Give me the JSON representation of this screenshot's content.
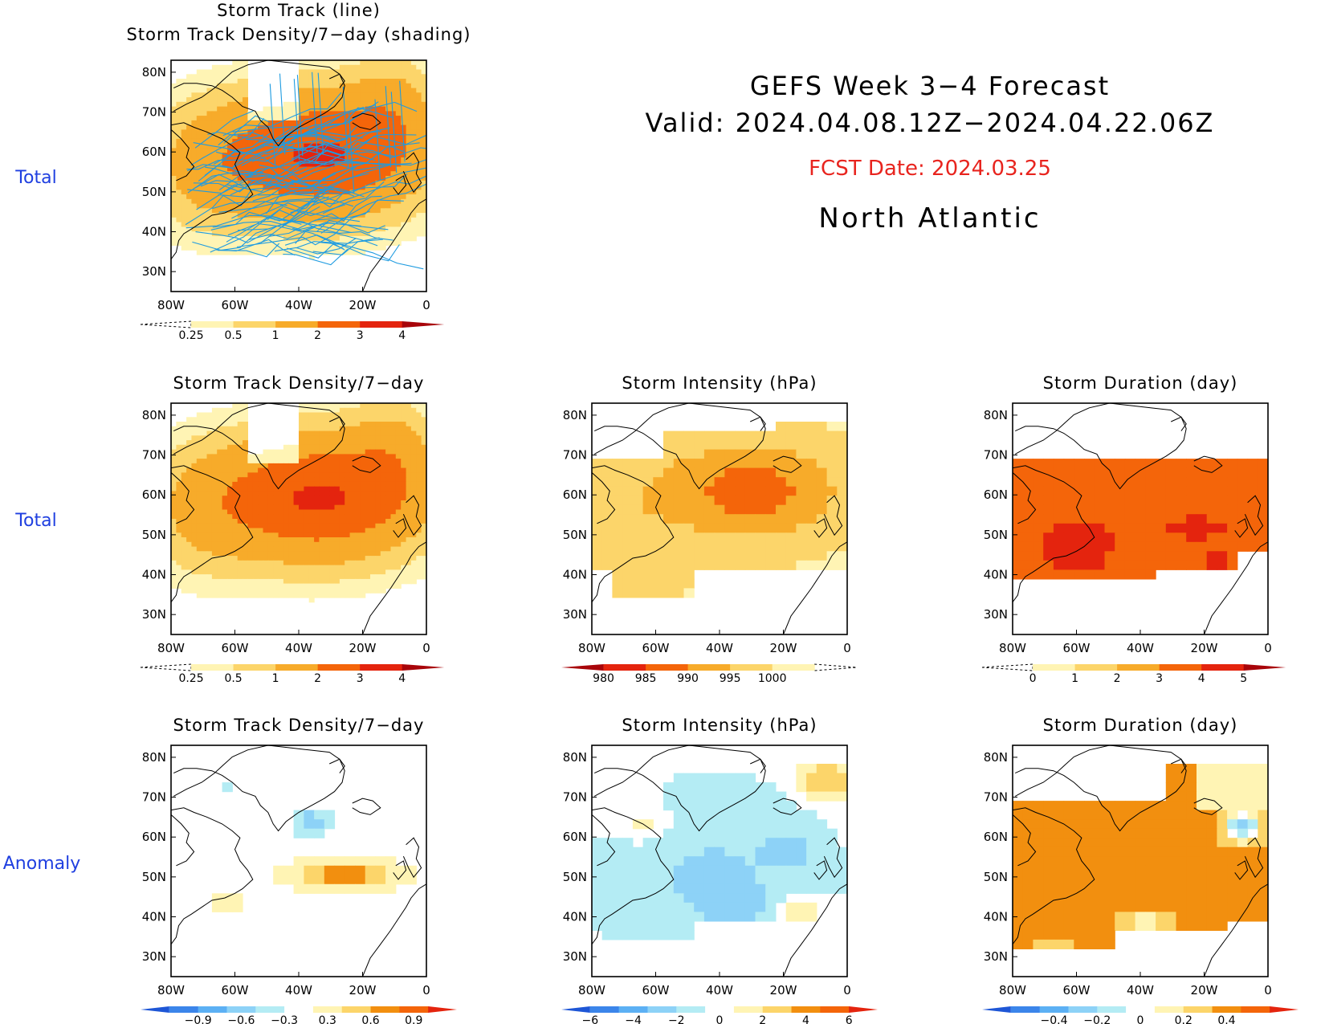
{
  "header": {
    "title_line1": "GEFS Week 3−4 Forecast",
    "title_line2": "Valid: 2024.04.08.12Z−2024.04.22.06Z",
    "fcst_date": "FCST Date: 2024.03.25",
    "region": "North Atlantic"
  },
  "row_labels": {
    "row1": "Total",
    "row2": "Total",
    "row3": "Anomaly"
  },
  "colors": {
    "row_label": "#1f3fe0",
    "fcst_date": "#e8241e",
    "track_line": "#1e9be0",
    "positive": [
      "#fff4b4",
      "#fcd56a",
      "#f7ab2a",
      "#f28f0f",
      "#f4650a",
      "#e4240e",
      "#a8050a"
    ],
    "negative": [
      "#b4ecf4",
      "#8dd2f7",
      "#5cb0f4",
      "#3b85ea",
      "#1e56d6"
    ]
  },
  "chart_data": [
    {
      "id": "track",
      "type": "heatmap",
      "title": [
        "Storm Track (line)",
        "Storm Track Density/7−day (shading)"
      ],
      "xlabel": "",
      "ylabel": "",
      "x_ticks": [
        "80W",
        "60W",
        "40W",
        "20W",
        "0"
      ],
      "y_ticks": [
        "80N",
        "70N",
        "60N",
        "50N",
        "40N",
        "30N"
      ],
      "lon_range": [
        -80,
        0
      ],
      "lat_range": [
        25,
        83
      ],
      "field": "density",
      "overlay": "storm-tracks",
      "colorbar": {
        "labels": [
          "0.25",
          "0.5",
          "1",
          "2",
          "3",
          "4"
        ],
        "style": "seq"
      }
    },
    {
      "id": "density-total",
      "type": "heatmap",
      "title": [
        "Storm Track Density/7−day"
      ],
      "xlabel": "",
      "ylabel": "",
      "x_ticks": [
        "80W",
        "60W",
        "40W",
        "20W",
        "0"
      ],
      "y_ticks": [
        "80N",
        "70N",
        "60N",
        "50N",
        "40N",
        "30N"
      ],
      "lon_range": [
        -80,
        0
      ],
      "lat_range": [
        25,
        83
      ],
      "field": "density",
      "colorbar": {
        "labels": [
          "0.25",
          "0.5",
          "1",
          "2",
          "3",
          "4"
        ],
        "style": "seq"
      }
    },
    {
      "id": "intensity-total",
      "type": "heatmap",
      "title": [
        "Storm Intensity (hPa)"
      ],
      "xlabel": "",
      "ylabel": "",
      "x_ticks": [
        "80W",
        "60W",
        "40W",
        "20W",
        "0"
      ],
      "y_ticks": [
        "80N",
        "70N",
        "60N",
        "50N",
        "40N",
        "30N"
      ],
      "lon_range": [
        -80,
        0
      ],
      "lat_range": [
        25,
        83
      ],
      "field": "intensity",
      "colorbar": {
        "labels": [
          "980",
          "985",
          "990",
          "995",
          "1000"
        ],
        "style": "seq-rev"
      }
    },
    {
      "id": "duration-total",
      "type": "heatmap",
      "title": [
        "Storm Duration (day)"
      ],
      "xlabel": "",
      "ylabel": "",
      "x_ticks": [
        "80W",
        "60W",
        "40W",
        "20W",
        "0"
      ],
      "y_ticks": [
        "80N",
        "70N",
        "60N",
        "50N",
        "40N",
        "30N"
      ],
      "lon_range": [
        -80,
        0
      ],
      "lat_range": [
        25,
        83
      ],
      "field": "duration",
      "colorbar": {
        "labels": [
          "0",
          "1",
          "2",
          "3",
          "4",
          "5"
        ],
        "style": "seq"
      }
    },
    {
      "id": "density-anom",
      "type": "heatmap",
      "title": [
        "Storm Track Density/7−day"
      ],
      "xlabel": "",
      "ylabel": "",
      "x_ticks": [
        "80W",
        "60W",
        "40W",
        "20W",
        "0"
      ],
      "y_ticks": [
        "80N",
        "70N",
        "60N",
        "50N",
        "40N",
        "30N"
      ],
      "lon_range": [
        -80,
        0
      ],
      "lat_range": [
        25,
        83
      ],
      "field": "density-anom",
      "colorbar": {
        "labels": [
          "−0.9",
          "−0.6",
          "−0.3",
          "0.3",
          "0.6",
          "0.9"
        ],
        "style": "div"
      }
    },
    {
      "id": "intensity-anom",
      "type": "heatmap",
      "title": [
        "Storm Intensity (hPa)"
      ],
      "xlabel": "",
      "ylabel": "",
      "x_ticks": [
        "80W",
        "60W",
        "40W",
        "20W",
        "0"
      ],
      "y_ticks": [
        "80N",
        "70N",
        "60N",
        "50N",
        "40N",
        "30N"
      ],
      "lon_range": [
        -80,
        0
      ],
      "lat_range": [
        25,
        83
      ],
      "field": "intensity-anom",
      "colorbar": {
        "labels": [
          "−6",
          "−4",
          "−2",
          "0",
          "2",
          "4",
          "6"
        ],
        "style": "div"
      }
    },
    {
      "id": "duration-anom",
      "type": "heatmap",
      "title": [
        "Storm Duration (day)"
      ],
      "xlabel": "",
      "ylabel": "",
      "x_ticks": [
        "80W",
        "60W",
        "40W",
        "20W",
        "0"
      ],
      "y_ticks": [
        "80N",
        "70N",
        "60N",
        "50N",
        "40N",
        "30N"
      ],
      "lon_range": [
        -80,
        0
      ],
      "lat_range": [
        25,
        83
      ],
      "field": "duration-anom",
      "colorbar": {
        "labels": [
          "−0.4",
          "−0.2",
          "0",
          "0.2",
          "0.4"
        ],
        "style": "div"
      }
    }
  ]
}
